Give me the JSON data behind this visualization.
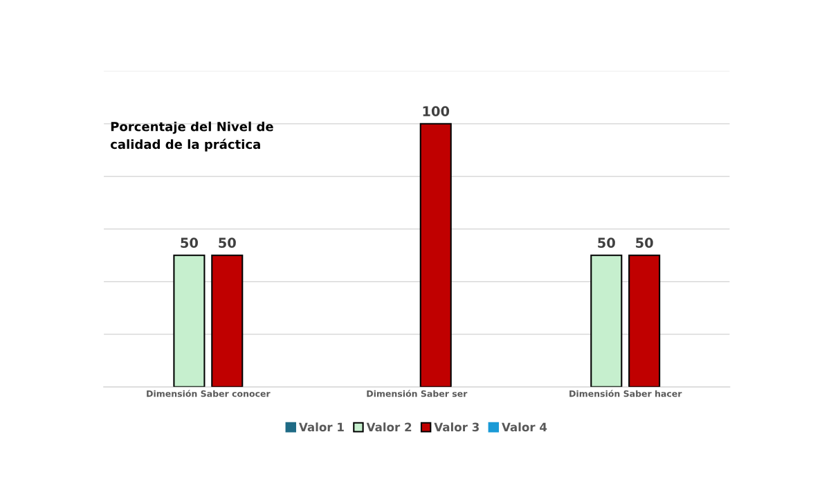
{
  "chart_data": {
    "type": "bar",
    "title": "Porcentaje del Nivel de\ncalidad de la práctica",
    "categories": [
      "Dimensión Saber conocer",
      "Dimensión Saber ser",
      "Dimensión Saber hacer"
    ],
    "series": [
      {
        "name": "Valor 1",
        "color": "#1f6b85",
        "values": [
          null,
          null,
          null
        ]
      },
      {
        "name": "Valor 2",
        "color": "#c6efce",
        "values": [
          50,
          null,
          50
        ]
      },
      {
        "name": "Valor 3",
        "color": "#c00000",
        "values": [
          50,
          100,
          50
        ]
      },
      {
        "name": "Valor 4",
        "color": "#1a9ad6",
        "values": [
          null,
          null,
          null
        ]
      }
    ],
    "ylim": [
      0,
      120
    ],
    "yticks": [
      {
        "value": 0,
        "label": null
      },
      {
        "value": 20,
        "label": null
      },
      {
        "value": 40,
        "label": null
      },
      {
        "value": 60,
        "label": null
      },
      {
        "value": 80,
        "label": null
      },
      {
        "value": 100,
        "label": null
      },
      {
        "value": 120,
        "label": null
      }
    ],
    "tick_labels": "x",
    "grid": "y",
    "legend": "bottom",
    "data_labels": true
  }
}
